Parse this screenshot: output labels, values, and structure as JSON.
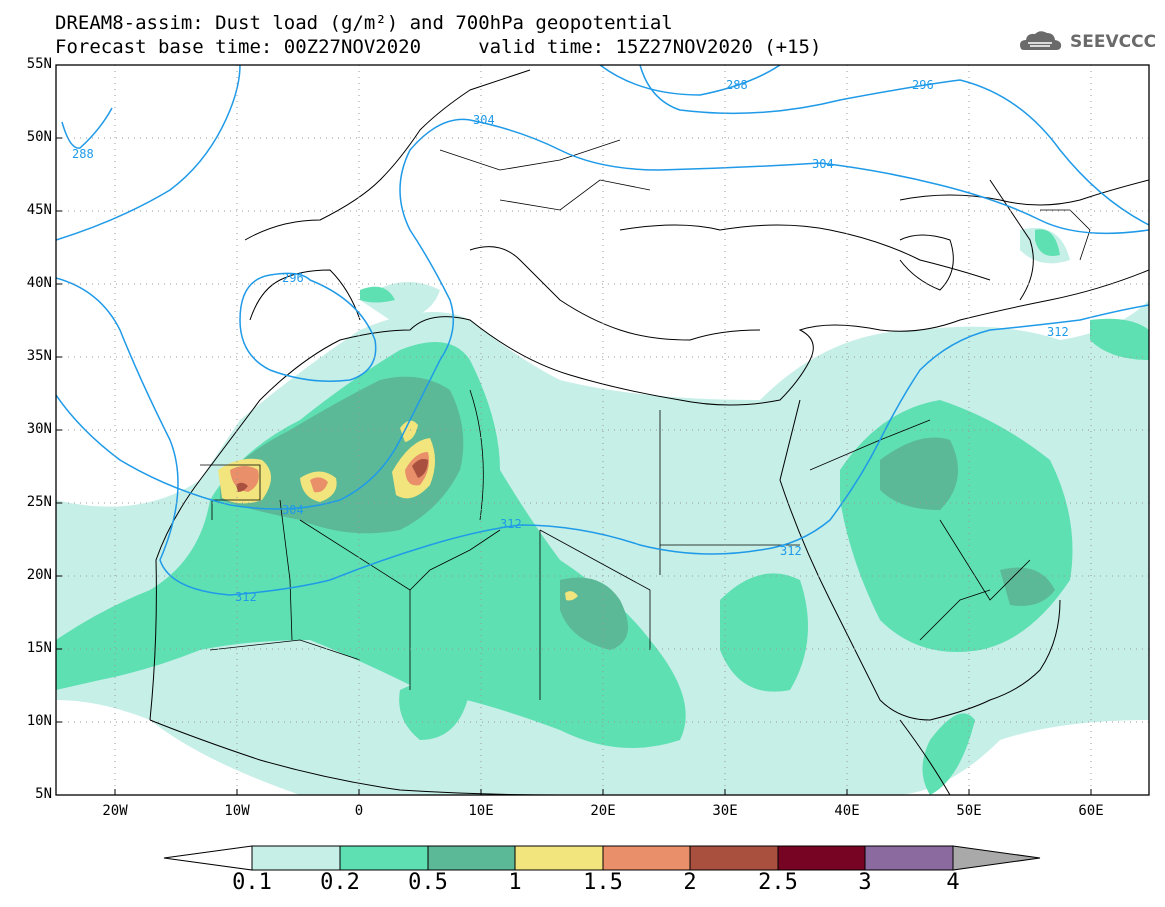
{
  "title_line1": "DREAM8-assim: Dust load (g/m²) and 700hPa geopotential",
  "title_line2": "Forecast base time: 00Z27NOV2020     valid time: 15Z27NOV2020 (+15)",
  "logo_text": "SEEVCCC",
  "lat_labels": [
    "55N",
    "50N",
    "45N",
    "40N",
    "35N",
    "30N",
    "25N",
    "20N",
    "15N",
    "10N",
    "5N"
  ],
  "lon_labels": [
    "20W",
    "10W",
    "0",
    "10E",
    "20E",
    "30E",
    "40E",
    "50E",
    "60E"
  ],
  "contour_labels": [
    "288",
    "296",
    "304",
    "312"
  ],
  "colorbar": {
    "labels": [
      "0.1",
      "0.2",
      "0.5",
      "1",
      "1.5",
      "2",
      "2.5",
      "3",
      "4"
    ],
    "colors": [
      "#c6efe7",
      "#5fe0b3",
      "#5cb997",
      "#f2e57e",
      "#e9906a",
      "#a9503f",
      "#780424",
      "#8b6aa0",
      "#a9a9a9"
    ],
    "below_color": "#ffffff"
  }
}
